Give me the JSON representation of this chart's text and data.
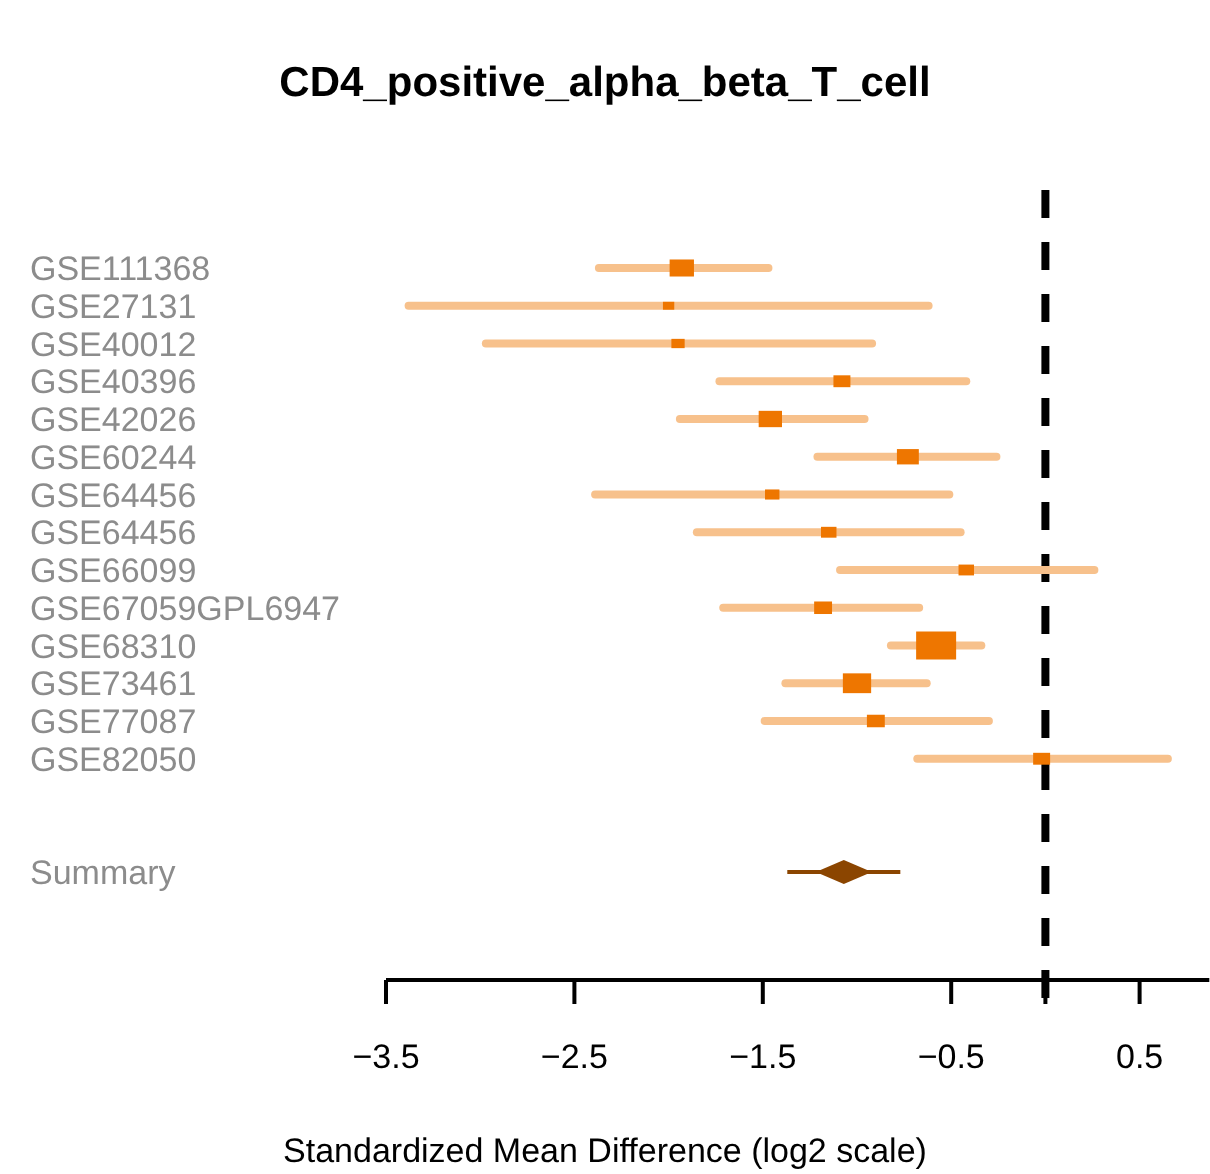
{
  "chart_data": {
    "type": "bubble",
    "orientation": "horizontal",
    "title": "CD4_positive_alpha_beta_T_cell",
    "xlabel": "Standardized Mean Difference (log2 scale)",
    "categories": [
      "GSE111368",
      "GSE27131",
      "GSE40012",
      "GSE40396",
      "GSE42026",
      "GSE60244",
      "GSE64456",
      "GSE64456",
      "GSE66099",
      "GSE67059GPL6947",
      "GSE68310",
      "GSE73461",
      "GSE77087",
      "GSE82050",
      null,
      null,
      "Summary"
    ],
    "series": [
      {
        "color": "#ee7600",
        "marker": "square",
        "values": [
          -1.93,
          -2.0,
          -1.95,
          -1.08,
          -1.46,
          -0.73,
          -1.45,
          -1.15,
          -0.42,
          -1.18,
          -0.58,
          -1.0,
          -0.9,
          -0.02,
          null,
          null,
          null
        ],
        "sizes": [
          0.37,
          0.08,
          0.11,
          0.18,
          0.34,
          0.3,
          0.13,
          0.15,
          0.15,
          0.2,
          1,
          0.5,
          0.2,
          0.18,
          null,
          null,
          null
        ],
        "errors": [
          [
            -2.37,
            -1.47
          ],
          [
            -3.38,
            -0.62
          ],
          [
            -2.97,
            -0.92
          ],
          [
            -1.73,
            -0.42
          ],
          [
            -1.94,
            -0.96
          ],
          [
            -1.21,
            -0.26
          ],
          [
            -2.39,
            -0.51
          ],
          [
            -1.85,
            -0.45
          ],
          [
            -1.09,
            0.26
          ],
          [
            -1.71,
            -0.67
          ],
          [
            -0.82,
            -0.34
          ],
          [
            -1.38,
            -0.63
          ],
          [
            -1.49,
            -0.3
          ],
          [
            -0.68,
            0.65
          ],
          null,
          null,
          null
        ]
      },
      {
        "type": "scatter",
        "color": "#8b4500",
        "marker": "diamond",
        "values": [
          null,
          null,
          null,
          null,
          null,
          null,
          null,
          null,
          null,
          null,
          null,
          null,
          null,
          null,
          null,
          null,
          -1.07
        ],
        "errors": [
          null,
          null,
          null,
          null,
          null,
          null,
          null,
          null,
          null,
          null,
          null,
          null,
          null,
          null,
          null,
          null,
          [
            -1.37,
            -0.77
          ]
        ]
      }
    ],
    "xlim": [
      -3.5,
      0.87
    ],
    "xticks": [
      {
        "value": -3.5,
        "label": "−3.5"
      },
      {
        "value": -2.5,
        "label": "−2.5"
      },
      {
        "value": -1.5,
        "label": "−1.5"
      },
      {
        "value": -0.5,
        "label": "−0.5"
      },
      {
        "value": 0,
        "label": null
      },
      {
        "value": 0.5,
        "label": "0.5"
      }
    ],
    "ref_lines": [
      {
        "axis": "x",
        "value": 0,
        "line_style": "dashed",
        "color": "#000000"
      }
    ],
    "grid": false
  }
}
